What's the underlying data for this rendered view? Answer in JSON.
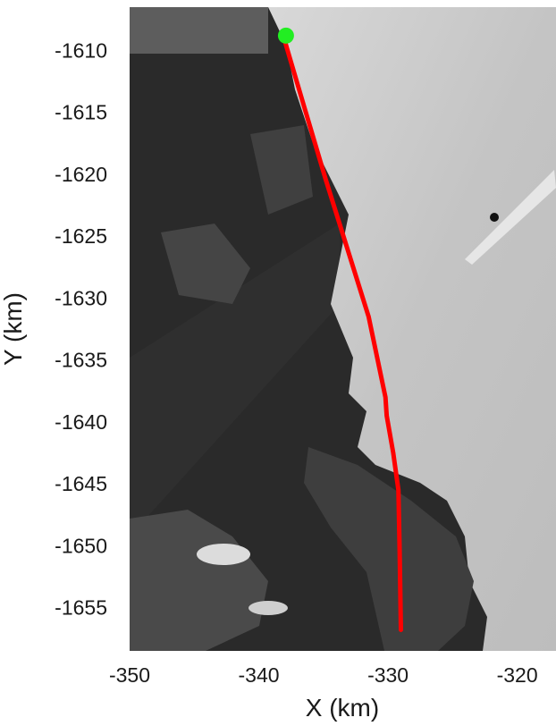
{
  "chart_data": {
    "type": "line",
    "background": "grayscale satellite imagery",
    "title": "",
    "xlabel": "X (km)",
    "ylabel": "Y (km)",
    "xlim": [
      -350,
      -317
    ],
    "ylim": [
      -1658.5,
      -1606.5
    ],
    "xticks": [
      -350,
      -340,
      -330,
      -320
    ],
    "yticks": [
      -1610,
      -1615,
      -1620,
      -1625,
      -1630,
      -1635,
      -1640,
      -1645,
      -1650,
      -1655
    ],
    "xtick_labels": [
      "-350",
      "-340",
      "-330",
      "-320"
    ],
    "ytick_labels": [
      "-1610",
      "-1615",
      "-1620",
      "-1625",
      "-1630",
      "-1635",
      "-1640",
      "-1645",
      "-1650",
      "-1655"
    ],
    "grid": false,
    "series": [
      {
        "color": "#ff0000",
        "x": [
          -338.0,
          -336.5,
          -334.8,
          -333.0,
          -331.5,
          -330.8,
          -330.2,
          -330.1,
          -329.6,
          -329.2,
          -329.1,
          -329.0
        ],
        "y": [
          -1609.2,
          -1614.5,
          -1620.5,
          -1626.5,
          -1631.5,
          -1635.0,
          -1638.0,
          -1639.5,
          -1642.5,
          -1645.5,
          -1650.5,
          -1656.8
        ]
      }
    ],
    "markers": [
      {
        "x": -337.9,
        "y": -1608.8,
        "color": "#22ee22",
        "shape": "circle"
      }
    ]
  }
}
